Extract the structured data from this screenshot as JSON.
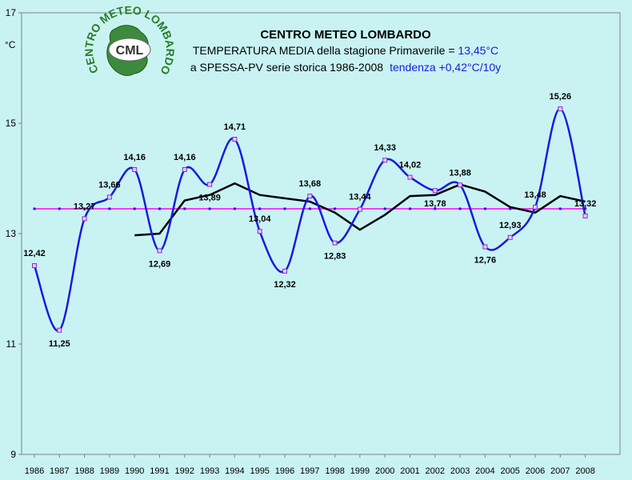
{
  "chart_data": {
    "type": "line",
    "x": [
      1986,
      1987,
      1988,
      1989,
      1990,
      1991,
      1992,
      1993,
      1994,
      1995,
      1996,
      1997,
      1998,
      1999,
      2000,
      2001,
      2002,
      2003,
      2004,
      2005,
      2006,
      2007,
      2008
    ],
    "series": [
      {
        "values": [
          12.42,
          11.25,
          13.27,
          13.66,
          14.16,
          12.69,
          14.16,
          13.89,
          14.71,
          13.04,
          12.32,
          13.68,
          12.83,
          13.44,
          14.33,
          14.02,
          13.78,
          13.88,
          12.76,
          12.93,
          13.48,
          15.26,
          13.32
        ],
        "color": "#1a1adf"
      },
      {
        "x": [
          1990,
          1991,
          1992,
          1993,
          1994,
          1995,
          1996,
          1997,
          1998,
          1999,
          2000,
          2001,
          2002,
          2003,
          2004,
          2005,
          2006,
          2007,
          2008
        ],
        "values": [
          12.97,
          13.0,
          13.6,
          13.7,
          13.91,
          13.7,
          13.64,
          13.58,
          13.38,
          13.07,
          13.34,
          13.68,
          13.7,
          13.89,
          13.76,
          13.48,
          13.38,
          13.68,
          13.58
        ],
        "color": "#000000"
      },
      {
        "values": [
          13.45,
          13.45,
          13.45,
          13.45,
          13.45,
          13.45,
          13.45,
          13.45,
          13.45,
          13.45,
          13.45,
          13.45,
          13.45,
          13.45,
          13.45,
          13.45,
          13.45,
          13.45,
          13.45,
          13.45,
          13.45,
          13.45,
          13.45
        ],
        "color": "#ff00ff"
      }
    ],
    "data_labels": [
      "12,42",
      "11,25",
      "13,27",
      "13,66",
      "14,16",
      "12,69",
      "14,16",
      "13,89",
      "14,71",
      "13,04",
      "12,32",
      "13,68",
      "12,83",
      "13,44",
      "14,33",
      "14,02",
      "13,78",
      "13,88",
      "12,76",
      "12,93",
      "13,48",
      "15,26",
      "13,32"
    ],
    "ylim": [
      9,
      17
    ],
    "yticks": [
      9,
      11,
      13,
      15,
      17
    ],
    "ylabel": "°C",
    "title": "CENTRO METEO LOMBARDO",
    "subtitle_line1_prefix": "TEMPERATURA MEDIA della stagione Primaverile = ",
    "subtitle_line1_value": "13,45°C",
    "subtitle_line2_prefix": "a SPESSA-PV serie storica 1986-2008",
    "subtitle_line2_trend": "tendenza +0,42°C/10y",
    "grid": false
  },
  "logo": {
    "arc_text": "CENTRO METEO LOMBARDO",
    "center_text": "CML"
  }
}
